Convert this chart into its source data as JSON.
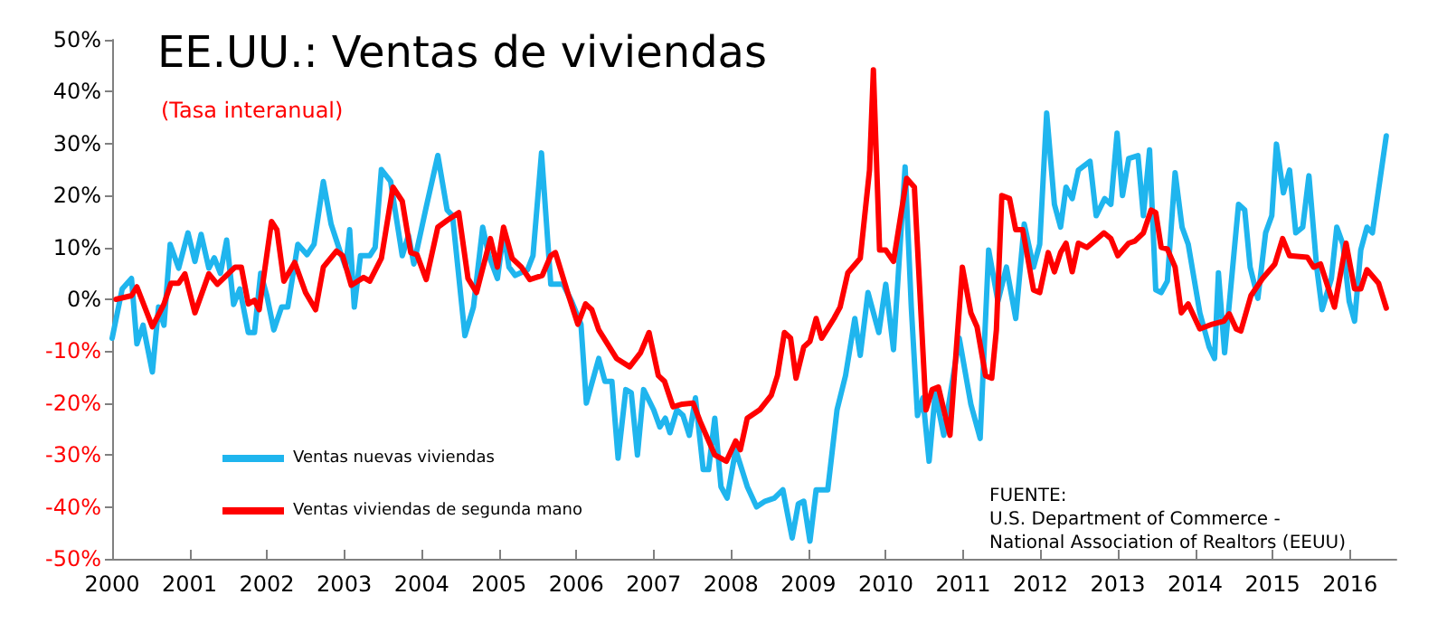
{
  "chart_data": {
    "type": "line",
    "title": "EE.UU.: Ventas de viviendas",
    "subtitle": "(Tasa interanual)",
    "annotations": [
      "FUENTE:\nU.S. Department of Commerce -\nNational Association of Realtors (EEUU)"
    ],
    "xlim": [
      2000,
      2016.6
    ],
    "xticks": [
      2000,
      2001,
      2002,
      2003,
      2004,
      2005,
      2006,
      2007,
      2008,
      2009,
      2010,
      2011,
      2012,
      2013,
      2014,
      2015,
      2016
    ],
    "ylim": [
      -50,
      50
    ],
    "yticks": [
      {
        "value": -50,
        "label": "-50%"
      },
      {
        "value": -40,
        "label": "-40%"
      },
      {
        "value": -30,
        "label": "-30%"
      },
      {
        "value": -20,
        "label": "-20%"
      },
      {
        "value": -10,
        "label": "-10%"
      },
      {
        "value": 0,
        "label": "0%"
      },
      {
        "value": 10,
        "label": "10%"
      },
      {
        "value": 20,
        "label": "20%"
      },
      {
        "value": 30,
        "label": "30%"
      },
      {
        "value": 40,
        "label": "40%"
      },
      {
        "value": 50,
        "label": "50%"
      }
    ],
    "grid": false,
    "legend": "bottom left",
    "marker": "none",
    "line_style": "solid",
    "series": [
      {
        "name": "Ventas nuevas viviendas",
        "color": "#1fb5ee",
        "x": [
          2000.0,
          2000.13,
          2000.25,
          2000.32,
          2000.4,
          2000.52,
          2000.6,
          2000.67,
          2000.75,
          2000.86,
          2000.98,
          2001.07,
          2001.15,
          2001.25,
          2001.32,
          2001.4,
          2001.48,
          2001.57,
          2001.65,
          2001.76,
          2001.84,
          2001.92,
          2002.0,
          2002.09,
          2002.19,
          2002.27,
          2002.4,
          2002.52,
          2002.61,
          2002.73,
          2002.83,
          2002.94,
          2003.02,
          2003.07,
          2003.13,
          2003.21,
          2003.33,
          2003.4,
          2003.48,
          2003.6,
          2003.75,
          2003.83,
          2003.9,
          2004.06,
          2004.21,
          2004.33,
          2004.4,
          2004.56,
          2004.67,
          2004.79,
          2004.87,
          2004.98,
          2005.06,
          2005.13,
          2005.21,
          2005.37,
          2005.44,
          2005.55,
          2005.67,
          2005.83,
          2005.94,
          2006.06,
          2006.13,
          2006.29,
          2006.37,
          2006.46,
          2006.54,
          2006.64,
          2006.71,
          2006.79,
          2006.87,
          2007.0,
          2007.08,
          2007.15,
          2007.21,
          2007.3,
          2007.38,
          2007.46,
          2007.54,
          2007.64,
          2007.71,
          2007.79,
          2007.87,
          2007.95,
          2008.06,
          2008.21,
          2008.33,
          2008.44,
          2008.56,
          2008.67,
          2008.79,
          2008.87,
          2008.94,
          2009.02,
          2009.1,
          2009.25,
          2009.37,
          2009.48,
          2009.6,
          2009.67,
          2009.77,
          2009.91,
          2010.0,
          2010.1,
          2010.25,
          2010.33,
          2010.41,
          2010.48,
          2010.56,
          2010.64,
          2010.75,
          2010.95,
          2011.1,
          2011.22,
          2011.33,
          2011.45,
          2011.56,
          2011.68,
          2011.79,
          2011.91,
          2011.99,
          2012.08,
          2012.18,
          2012.26,
          2012.33,
          2012.41,
          2012.49,
          2012.64,
          2012.72,
          2012.83,
          2012.91,
          2012.99,
          2013.06,
          2013.14,
          2013.26,
          2013.33,
          2013.41,
          2013.49,
          2013.56,
          2013.64,
          2013.74,
          2013.83,
          2013.91,
          2014.06,
          2014.18,
          2014.25,
          2014.3,
          2014.38,
          2014.44,
          2014.56,
          2014.64,
          2014.71,
          2014.81,
          2014.91,
          2014.99,
          2015.05,
          2015.14,
          2015.22,
          2015.3,
          2015.39,
          2015.47,
          2015.57,
          2015.64,
          2015.76,
          2015.83,
          2015.91,
          2015.99,
          2016.06,
          2016.14,
          2016.22,
          2016.29,
          2016.47
        ],
        "values": [
          -7.5,
          2,
          4,
          -8.6,
          -5,
          -14,
          -1.5,
          -5,
          10.6,
          6,
          12.8,
          7.3,
          12.5,
          6,
          8,
          5,
          11.4,
          -1,
          2,
          -6.4,
          -6.4,
          5,
          0.7,
          -5.9,
          -1.5,
          -1.5,
          10.6,
          8.6,
          10.6,
          22.7,
          14.5,
          9.5,
          6.2,
          13.4,
          -1.5,
          8.4,
          8.4,
          10,
          25,
          22.7,
          8.4,
          12.3,
          6.8,
          17.8,
          27.7,
          17.2,
          16.1,
          -7,
          -1.5,
          13.9,
          8.4,
          4,
          12.8,
          6.2,
          4.6,
          5.7,
          8.4,
          28.2,
          2.9,
          2.9,
          -0.4,
          -4.8,
          -20,
          -11.4,
          -15.8,
          -15.8,
          -30.6,
          -17.4,
          -18,
          -30,
          -17.4,
          -21.3,
          -24.6,
          -22.9,
          -25.7,
          -21.3,
          -22.4,
          -26.2,
          -19,
          -32.8,
          -32.8,
          -22.9,
          -36.1,
          -38.3,
          -29,
          -36.1,
          -40,
          -38.9,
          -38.3,
          -36.7,
          -46,
          -39.4,
          -38.9,
          -46.6,
          -36.7,
          -36.7,
          -21.3,
          -14.7,
          -3.7,
          -10.8,
          1.3,
          -6.4,
          2.9,
          -9.7,
          25.5,
          -1.5,
          -22.4,
          -19,
          -31.2,
          -18,
          -26.2,
          -7.5,
          -20.2,
          -26.8,
          9.5,
          -0.4,
          6.2,
          -3.7,
          14.5,
          6.2,
          10.6,
          35.9,
          18.3,
          13.9,
          21.6,
          19.4,
          24.9,
          26.6,
          16.1,
          19.4,
          18.3,
          32,
          20,
          27.1,
          27.7,
          16.1,
          28.8,
          1.8,
          1.3,
          3.5,
          24.4,
          13.9,
          10.6,
          -2.6,
          -9.2,
          -11.4,
          5.1,
          -10.3,
          -0.9,
          18.3,
          17.2,
          6.2,
          0.2,
          12.8,
          16.1,
          29.9,
          20.5,
          24.9,
          12.8,
          13.9,
          23.8,
          6.2,
          -2,
          4,
          13.9,
          10.6,
          -0.4,
          -4.2,
          9.5,
          13.9,
          12.8,
          31.5
        ]
      },
      {
        "name": "Ventas viviendas de segunda mano",
        "color": "#ff0000",
        "x": [
          2000.05,
          2000.25,
          2000.32,
          2000.52,
          2000.67,
          2000.76,
          2000.86,
          2000.94,
          2001.07,
          2001.25,
          2001.36,
          2001.59,
          2001.67,
          2001.76,
          2001.84,
          2001.9,
          2002.06,
          2002.13,
          2002.22,
          2002.36,
          2002.5,
          2002.63,
          2002.73,
          2002.9,
          2002.98,
          2003.09,
          2003.25,
          2003.33,
          2003.48,
          2003.63,
          2003.75,
          2003.86,
          2003.94,
          2004.06,
          2004.21,
          2004.33,
          2004.48,
          2004.6,
          2004.71,
          2004.89,
          2004.98,
          2005.06,
          2005.17,
          2005.29,
          2005.4,
          2005.56,
          2005.67,
          2005.73,
          2005.9,
          2006.02,
          2006.12,
          2006.2,
          2006.29,
          2006.52,
          2006.69,
          2006.83,
          2006.94,
          2007.06,
          2007.14,
          2007.25,
          2007.37,
          2007.51,
          2007.6,
          2007.79,
          2007.94,
          2008.06,
          2008.12,
          2008.21,
          2008.37,
          2008.52,
          2008.6,
          2008.69,
          2008.77,
          2008.84,
          2008.94,
          2009.02,
          2009.1,
          2009.17,
          2009.33,
          2009.41,
          2009.51,
          2009.67,
          2009.79,
          2009.84,
          2009.92,
          2010.0,
          2010.1,
          2010.27,
          2010.37,
          2010.52,
          2010.6,
          2010.68,
          2010.83,
          2010.99,
          2011.1,
          2011.18,
          2011.29,
          2011.37,
          2011.43,
          2011.5,
          2011.6,
          2011.68,
          2011.77,
          2011.91,
          2011.99,
          2012.1,
          2012.18,
          2012.26,
          2012.33,
          2012.41,
          2012.49,
          2012.6,
          2012.72,
          2012.82,
          2012.91,
          2013.0,
          2013.14,
          2013.22,
          2013.33,
          2013.43,
          2013.49,
          2013.56,
          2013.64,
          2013.74,
          2013.82,
          2013.91,
          2014.06,
          2014.22,
          2014.37,
          2014.44,
          2014.53,
          2014.59,
          2014.72,
          2014.87,
          2015.03,
          2015.13,
          2015.22,
          2015.45,
          2015.53,
          2015.62,
          2015.8,
          2015.95,
          2016.06,
          2016.14,
          2016.22,
          2016.37,
          2016.47
        ],
        "values": [
          0,
          0.7,
          2.4,
          -5.3,
          -0.9,
          3.1,
          3.1,
          4.9,
          -2.6,
          4.9,
          2.9,
          6.2,
          6.2,
          -0.9,
          -0.2,
          -2,
          15,
          13.4,
          3.5,
          7.1,
          1.3,
          -2,
          6.2,
          9.3,
          8.4,
          2.7,
          4.2,
          3.5,
          7.9,
          21.6,
          18.9,
          9,
          8.6,
          3.8,
          13.9,
          15.2,
          16.7,
          4,
          1.3,
          11.7,
          6.2,
          13.9,
          7.9,
          6.2,
          3.8,
          4.6,
          8.4,
          9,
          0.7,
          -4.8,
          -0.9,
          -2,
          -5.9,
          -11.4,
          -13,
          -10.3,
          -6.4,
          -14.7,
          -15.8,
          -20.7,
          -20.2,
          -20,
          -23.5,
          -30,
          -31.2,
          -27.3,
          -29,
          -22.9,
          -21.3,
          -18.5,
          -14.7,
          -6.4,
          -7.5,
          -15.2,
          -9.2,
          -8.1,
          -3.7,
          -7.5,
          -3.7,
          -1.5,
          5.1,
          7.9,
          24.9,
          44.2,
          9.5,
          9.5,
          7.3,
          23.3,
          21.6,
          -21.3,
          -17.4,
          -16.9,
          -26.2,
          6.2,
          -2.6,
          -5.3,
          -14.7,
          -15.2,
          -5.9,
          20,
          19.4,
          13.4,
          13.4,
          1.8,
          1.3,
          9,
          5.3,
          9,
          10.8,
          5.3,
          10.8,
          10,
          11.5,
          12.8,
          11.7,
          8.4,
          10.8,
          11.2,
          12.8,
          17.2,
          16.7,
          10,
          9.7,
          6.2,
          -2.6,
          -0.9,
          -5.7,
          -4.8,
          -4.2,
          -2.8,
          -5.7,
          -6.1,
          0.7,
          4,
          6.8,
          11.7,
          8.4,
          8.1,
          6.2,
          6.8,
          -1.5,
          10.8,
          2,
          2,
          5.7,
          3.1,
          -1.7
        ]
      }
    ]
  }
}
